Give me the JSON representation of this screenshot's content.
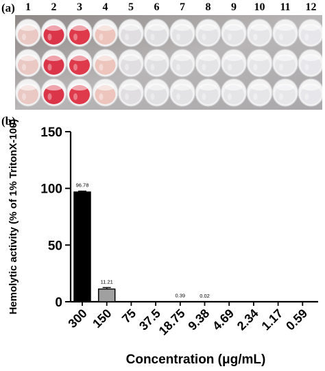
{
  "panel_a": {
    "label": "(a)",
    "columns": [
      "1",
      "2",
      "3",
      "4",
      "5",
      "6",
      "7",
      "8",
      "9",
      "10",
      "11",
      "12"
    ],
    "rows": 3,
    "well_colors": [
      "#e9c4c0",
      "#d9253b",
      "#dc2a3d",
      "#eec1b8",
      "#dedcde",
      "#e0dfe2",
      "#e2e2e4",
      "#e3e3e6",
      "#e4e4e7",
      "#e5e5e8",
      "#e6e6e9",
      "#e6e6ea"
    ]
  },
  "panel_b": {
    "label": "(b)"
  },
  "chart_data": {
    "type": "bar",
    "categories": [
      "300",
      "150",
      "75",
      "37.5",
      "18.75",
      "9.38",
      "4.69",
      "2.34",
      "1.17",
      "0.59"
    ],
    "values": [
      96.78,
      11.21,
      0,
      0,
      0.39,
      0.02,
      0,
      0,
      0,
      0
    ],
    "errors": [
      0.8,
      1.3,
      0,
      0,
      0,
      0,
      0,
      0,
      0,
      0
    ],
    "data_labels": [
      "96.78",
      "11.21",
      "",
      "",
      "0.39",
      "0.02",
      "",
      "",
      "",
      ""
    ],
    "bar_colors": [
      "#000000",
      "#a0a0a0"
    ],
    "xlabel": "Concentration (μg/mL)",
    "ylabel": "Hemolytic activity (% of 1% TritonX-100)",
    "ylim": [
      0,
      150
    ],
    "yticks": [
      0,
      50,
      100,
      150
    ],
    "grid": false
  }
}
